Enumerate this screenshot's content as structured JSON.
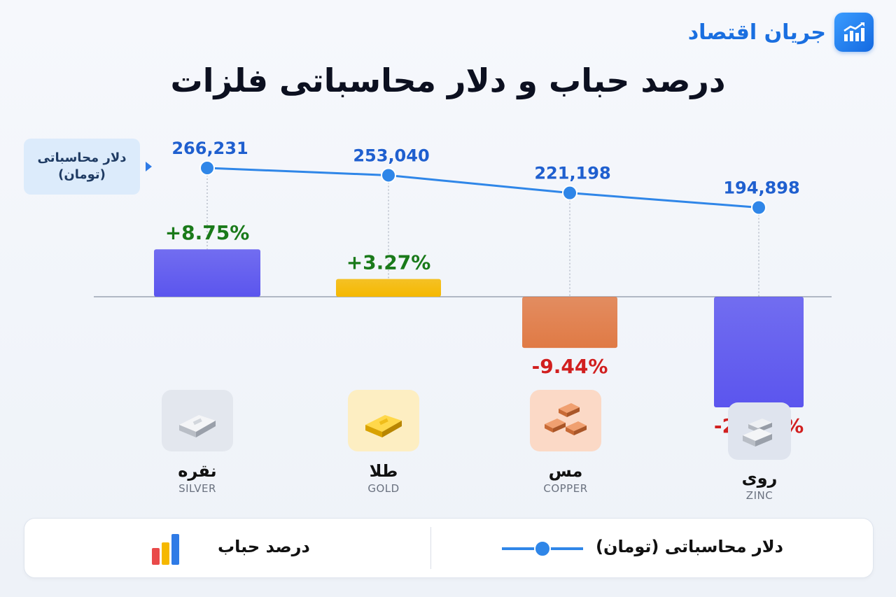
{
  "brand": {
    "name": "جریان اقتصاد",
    "icon": "trend-chart-icon"
  },
  "title": "درصد حباب و دلار محاسباتی فلزات",
  "y_label": {
    "line1": "دلار محاسباتی",
    "line2": "(تومان)"
  },
  "colors": {
    "line": "#2f86e8",
    "positive": "#1a7a1a",
    "negative": "#d11f1f",
    "value_text": "#1f5fcf",
    "silver": "#5b55ee",
    "gold": "#f5b800",
    "copper": "#e07a45",
    "zinc": "#5b55ee"
  },
  "chart_data": {
    "type": "bar",
    "categories": [
      "نقره",
      "طلا",
      "مس",
      "روی"
    ],
    "categories_en": [
      "SILVER",
      "GOLD",
      "COPPER",
      "ZINC"
    ],
    "series": [
      {
        "name": "درصد حباب",
        "values": [
          8.75,
          3.27,
          -9.44,
          -20.38
        ],
        "labels": [
          "+8.75%",
          "+3.27%",
          "-9.44%",
          "-20.38%"
        ]
      },
      {
        "name": "دلار محاسباتی (تومان)",
        "type": "line",
        "values": [
          266231,
          253040,
          221198,
          194898
        ],
        "labels": [
          "266,231",
          "253,040",
          "221,198",
          "194,898"
        ]
      }
    ],
    "legend": "bottom"
  },
  "metals": [
    {
      "fa": "نقره",
      "en": "SILVER",
      "icon": "silver-bar-icon"
    },
    {
      "fa": "طلا",
      "en": "GOLD",
      "icon": "gold-bar-icon"
    },
    {
      "fa": "مس",
      "en": "COPPER",
      "icon": "copper-bars-icon"
    },
    {
      "fa": "روی",
      "en": "ZINC",
      "icon": "zinc-bars-icon"
    }
  ],
  "legend": {
    "bubble": "درصد حباب",
    "dollar": "دلار محاسباتی (تومان)"
  }
}
